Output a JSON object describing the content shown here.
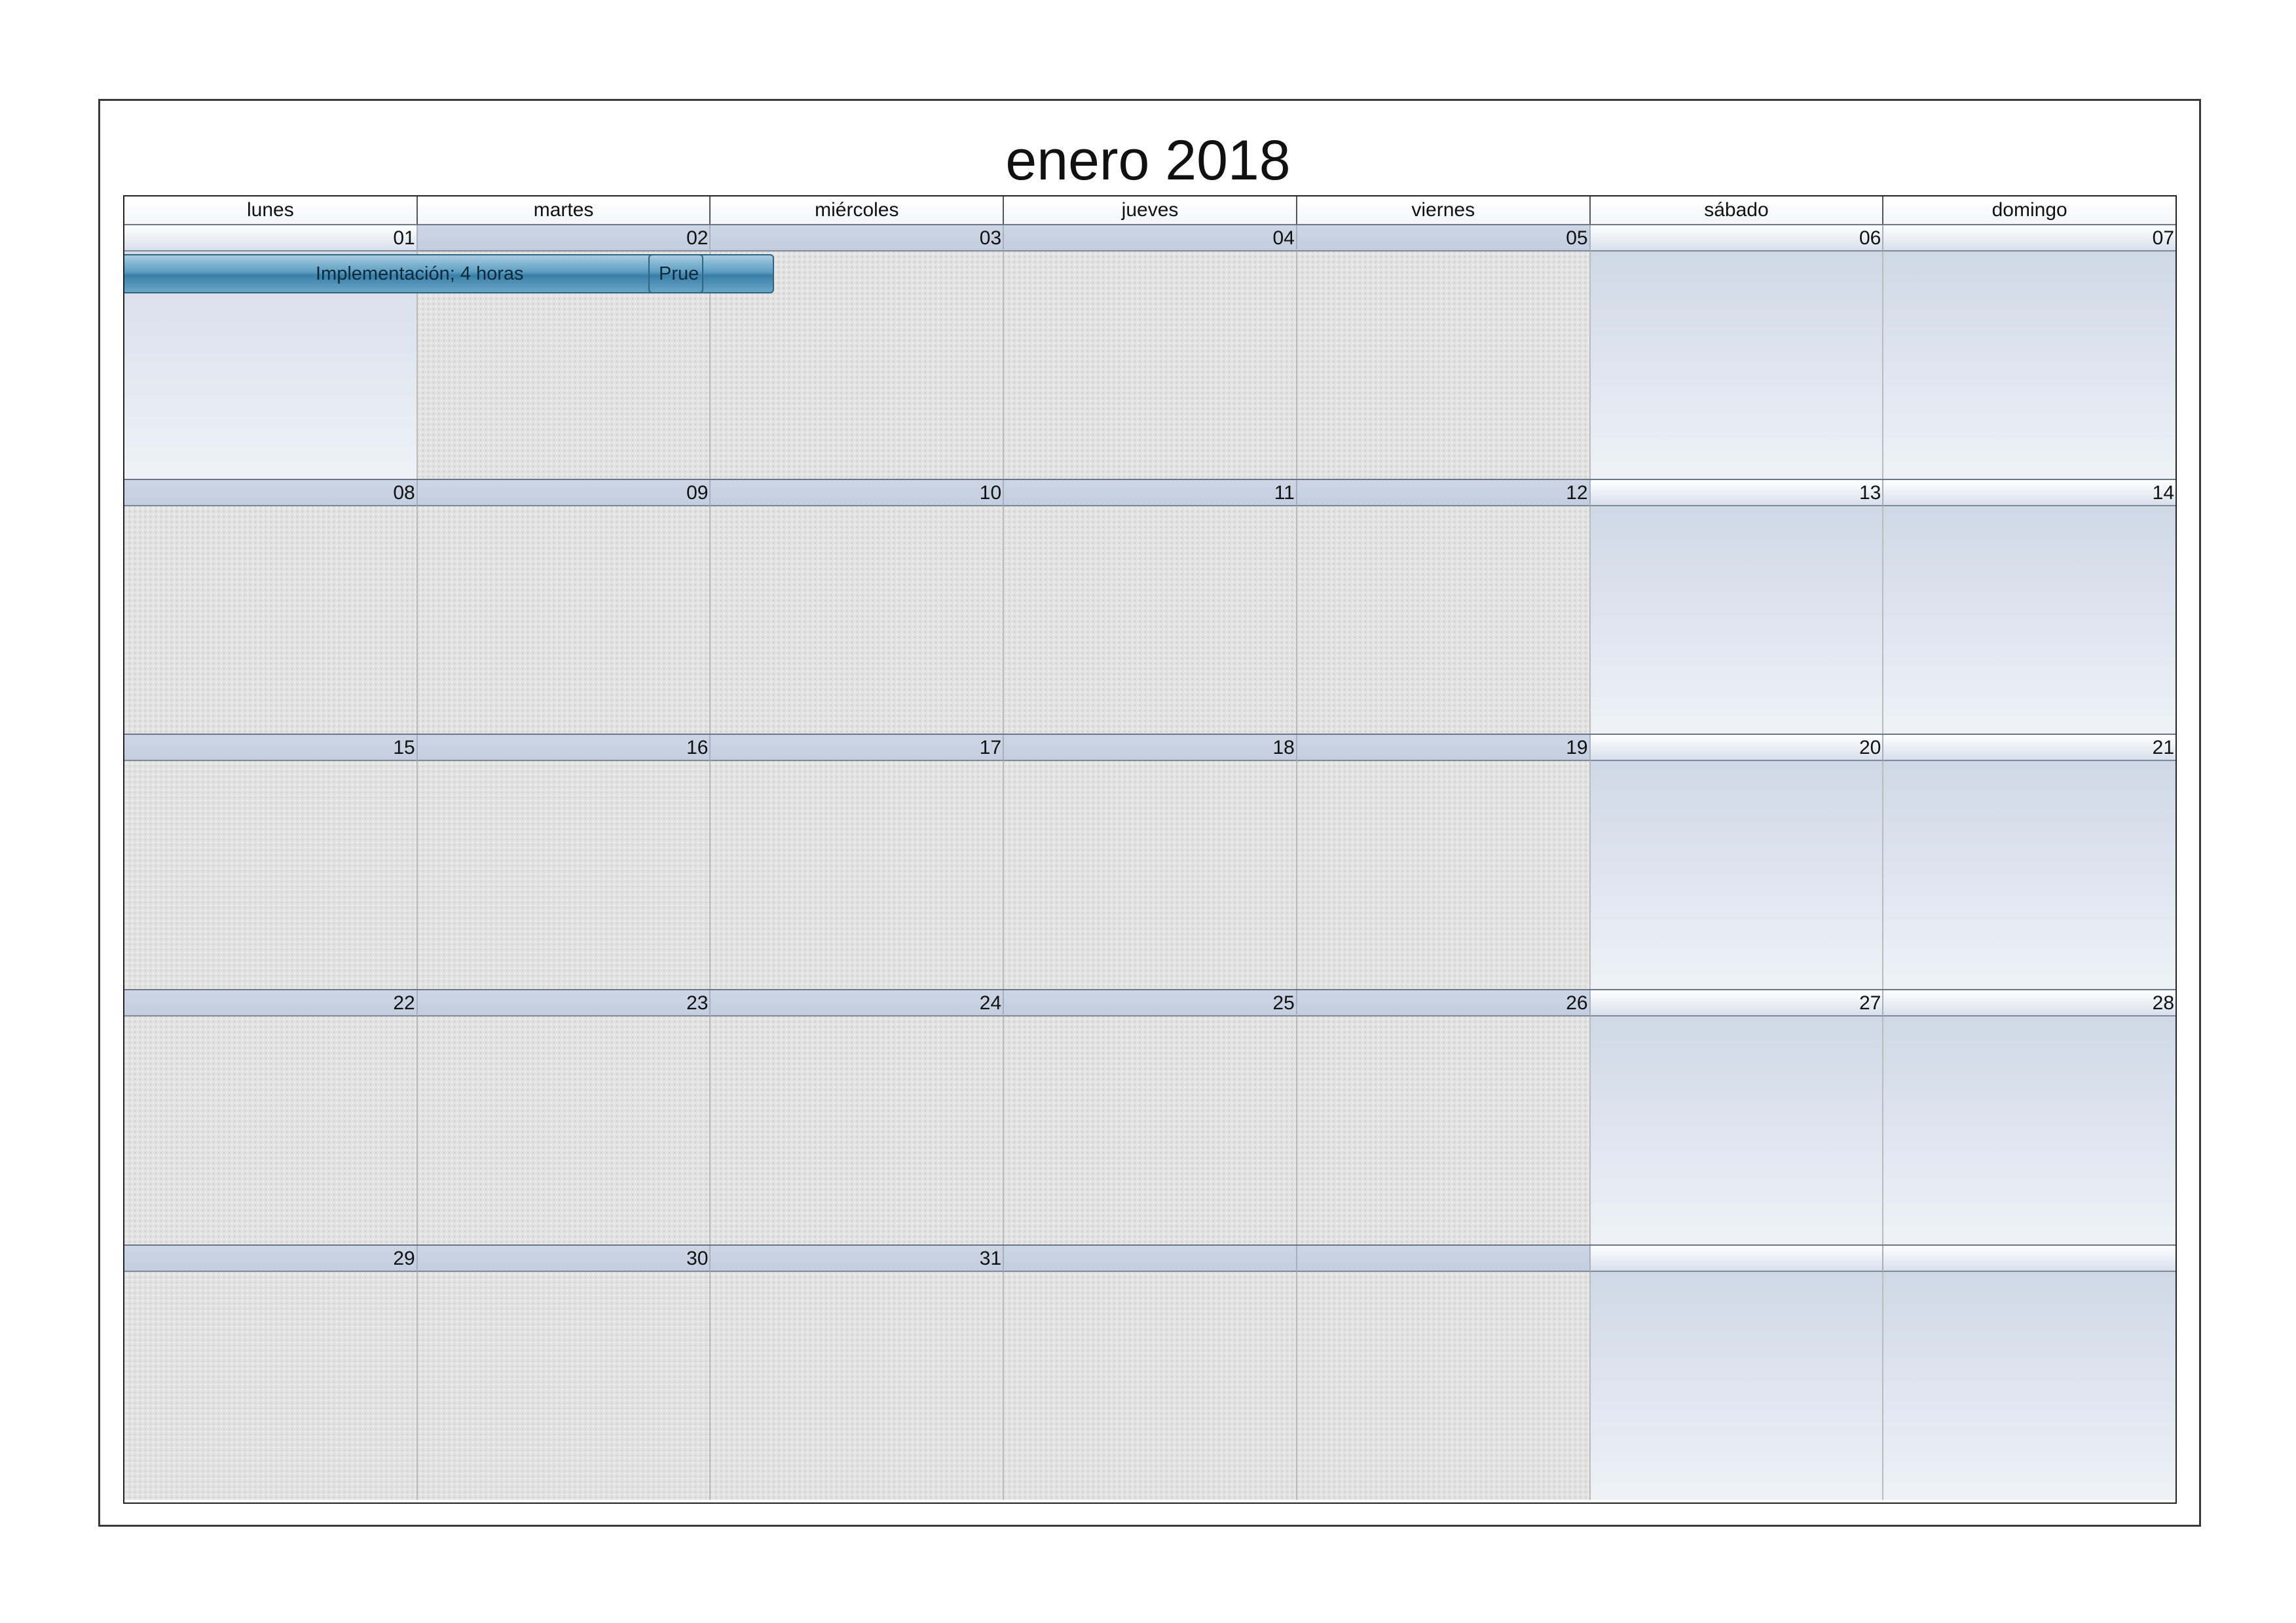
{
  "calendar": {
    "title": "enero 2018",
    "weekdays": [
      "lunes",
      "martes",
      "miércoles",
      "jueves",
      "viernes",
      "sábado",
      "domingo"
    ],
    "weeks": [
      [
        "01",
        "02",
        "03",
        "04",
        "05",
        "06",
        "07"
      ],
      [
        "08",
        "09",
        "10",
        "11",
        "12",
        "13",
        "14"
      ],
      [
        "15",
        "16",
        "17",
        "18",
        "19",
        "20",
        "21"
      ],
      [
        "22",
        "23",
        "24",
        "25",
        "26",
        "27",
        "28"
      ],
      [
        "29",
        "30",
        "31",
        "",
        "",
        "",
        ""
      ]
    ],
    "events": [
      {
        "label": "Implementación; 4 horas"
      },
      {
        "label": "Prue"
      }
    ],
    "colors": {
      "day_header": "#c7d1e2",
      "weekday_cell": "#e3e3e3",
      "weekend_cell": "#dde4ef",
      "event_bar": "#3a7fa8"
    }
  }
}
